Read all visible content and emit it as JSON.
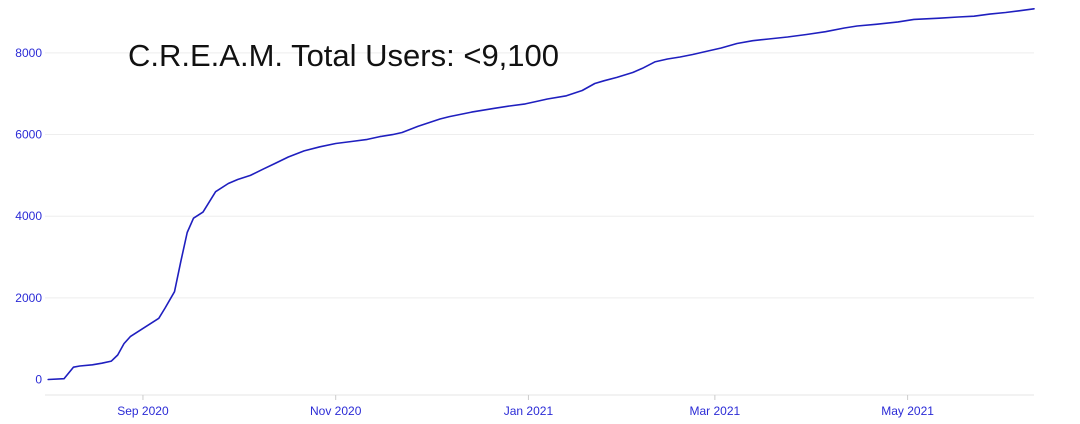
{
  "chart_data": {
    "type": "line",
    "title": "C.R.E.A.M. Total Users: <9,100",
    "xlabel": "",
    "ylabel": "",
    "ylim": [
      -380,
      9100
    ],
    "xlim": [
      "2020-08-01",
      "2021-06-10"
    ],
    "y_ticks": [
      0,
      2000,
      4000,
      6000,
      8000
    ],
    "y_tick_labels": [
      "0",
      "2000",
      "4000",
      "6000",
      "8000"
    ],
    "x_ticks": [
      "2020-09-01",
      "2020-11-01",
      "2021-01-01",
      "2021-03-01",
      "2021-05-01"
    ],
    "x_tick_labels": [
      "Sep 2020",
      "Nov 2020",
      "Jan 2021",
      "Mar 2021",
      "May 2021"
    ],
    "grid": true,
    "legend": "none",
    "colors": {
      "line": "#1f1fbf",
      "tick_text": "#2b2bd6",
      "grid": "#eeeeee",
      "axis": "#e6e6e6"
    },
    "series": [
      {
        "x": [
          "2020-08-02",
          "2020-08-07",
          "2020-08-10",
          "2020-08-12",
          "2020-08-16",
          "2020-08-19",
          "2020-08-22",
          "2020-08-24",
          "2020-08-26",
          "2020-08-28",
          "2020-09-02",
          "2020-09-06",
          "2020-09-08",
          "2020-09-11",
          "2020-09-13",
          "2020-09-15",
          "2020-09-17",
          "2020-09-20",
          "2020-09-24",
          "2020-09-28",
          "2020-10-01",
          "2020-10-05",
          "2020-10-09",
          "2020-10-13",
          "2020-10-17",
          "2020-10-22",
          "2020-10-27",
          "2020-11-01",
          "2020-11-06",
          "2020-11-11",
          "2020-11-15",
          "2020-11-19",
          "2020-11-22",
          "2020-11-27",
          "2020-12-04",
          "2020-12-07",
          "2020-12-14",
          "2020-12-21",
          "2020-12-26",
          "2020-12-31",
          "2021-01-04",
          "2021-01-07",
          "2021-01-13",
          "2021-01-18",
          "2021-01-22",
          "2021-01-25",
          "2021-01-29",
          "2021-02-03",
          "2021-02-06",
          "2021-02-10",
          "2021-02-14",
          "2021-02-18",
          "2021-02-22",
          "2021-02-27",
          "2021-03-03",
          "2021-03-08",
          "2021-03-13",
          "2021-03-18",
          "2021-03-24",
          "2021-03-30",
          "2021-04-05",
          "2021-04-11",
          "2021-04-15",
          "2021-04-21",
          "2021-04-28",
          "2021-05-03",
          "2021-05-11",
          "2021-05-17",
          "2021-05-22",
          "2021-05-27",
          "2021-06-01",
          "2021-06-05",
          "2021-06-10"
        ],
        "y": [
          0,
          20,
          300,
          330,
          360,
          400,
          450,
          600,
          880,
          1050,
          1300,
          1500,
          1750,
          2150,
          2900,
          3600,
          3950,
          4100,
          4600,
          4800,
          4900,
          5000,
          5150,
          5300,
          5450,
          5600,
          5700,
          5780,
          5830,
          5880,
          5950,
          6000,
          6050,
          6200,
          6380,
          6440,
          6550,
          6640,
          6700,
          6750,
          6820,
          6870,
          6950,
          7080,
          7250,
          7320,
          7400,
          7520,
          7620,
          7780,
          7850,
          7900,
          7960,
          8050,
          8120,
          8230,
          8300,
          8340,
          8390,
          8450,
          8520,
          8610,
          8660,
          8700,
          8760,
          8820,
          8850,
          8880,
          8900,
          8950,
          8990,
          9030,
          9080
        ]
      }
    ]
  }
}
